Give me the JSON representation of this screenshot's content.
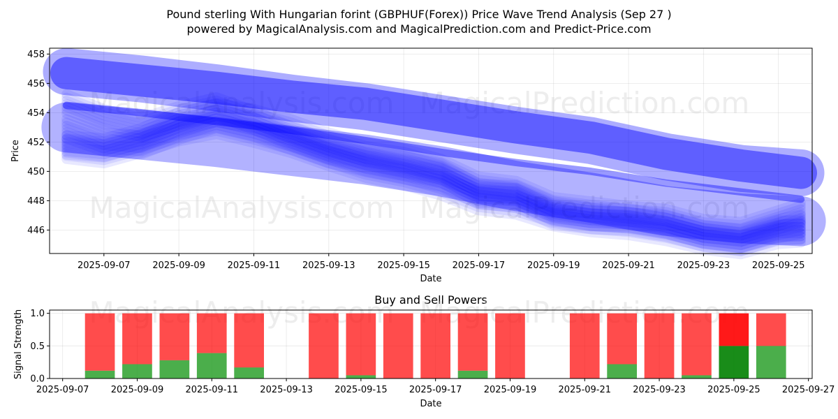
{
  "title_line1": "Pound sterling With Hungarian forint (GBPHUF(Forex)) Price Wave Trend Analysis (Sep 27 )",
  "title_line2": "powered by MagicalAnalysis.com and MagicalPrediction.com and Predict-Price.com",
  "watermarks": [
    "MagicalAnalysis.com",
    "MagicalPrediction.com"
  ],
  "colors": {
    "wave": "#0000ff",
    "sell": "#ff0000",
    "buy": "#2ca02c",
    "buy_strong": "#008000",
    "grid": "#b0b0b0"
  },
  "chart_data": [
    {
      "type": "area",
      "title": "",
      "xlabel": "Date",
      "ylabel": "Price",
      "x_start": "2025-09-06",
      "xlim_days": [
        -0.45,
        19.9
      ],
      "ylim": [
        444.4,
        458.4
      ],
      "x_ticks": [
        "2025-09-07",
        "2025-09-09",
        "2025-09-11",
        "2025-09-13",
        "2025-09-15",
        "2025-09-17",
        "2025-09-19",
        "2025-09-21",
        "2025-09-23",
        "2025-09-25"
      ],
      "y_ticks": [
        446,
        448,
        450,
        452,
        454,
        456,
        458
      ],
      "bands": [
        {
          "name": "upper-wide",
          "width": 3.2,
          "alpha": 0.32,
          "x": [
            0,
            2,
            4,
            6,
            8,
            10,
            12,
            14,
            16,
            18,
            19.6
          ],
          "y": [
            456.8,
            456.3,
            455.7,
            455.0,
            454.4,
            453.6,
            452.8,
            452.1,
            451.0,
            450.2,
            449.9
          ]
        },
        {
          "name": "upper-dense",
          "width": 2.2,
          "alpha": 0.45,
          "x": [
            0,
            2,
            4,
            6,
            8,
            10,
            12,
            14,
            16,
            18,
            19.6
          ],
          "y": [
            456.7,
            456.2,
            455.7,
            455.1,
            454.6,
            453.8,
            453.0,
            452.3,
            451.2,
            450.4,
            449.9
          ]
        },
        {
          "name": "lower-wide",
          "width": 3.4,
          "alpha": 0.3,
          "x": [
            0,
            2,
            4,
            6,
            8,
            10,
            12,
            14,
            16,
            18,
            19.6
          ],
          "y": [
            453.0,
            452.5,
            452.0,
            451.4,
            450.8,
            450.0,
            449.0,
            448.2,
            447.3,
            446.8,
            446.6
          ]
        },
        {
          "name": "mid-line",
          "width": 0.5,
          "alpha": 0.4,
          "x": [
            0,
            2,
            4,
            6,
            8,
            10,
            12,
            14,
            16,
            18,
            19.6
          ],
          "y": [
            454.5,
            454.0,
            453.4,
            452.8,
            452.1,
            451.3,
            450.6,
            450.0,
            449.2,
            448.6,
            448.1
          ]
        }
      ],
      "wave_series": [
        {
          "x": [
            0,
            1,
            2,
            3,
            4,
            5,
            6,
            7,
            8,
            9,
            10,
            11,
            12,
            13,
            14,
            15,
            16,
            17,
            18,
            19,
            19.6
          ],
          "y": [
            451.8,
            451.6,
            452.3,
            453.4,
            454.0,
            453.6,
            452.9,
            452.0,
            451.3,
            450.9,
            450.2,
            449.0,
            448.7,
            447.6,
            447.3,
            447.0,
            446.8,
            446.1,
            445.9,
            446.7,
            447.2
          ]
        },
        {
          "x": [
            0,
            1,
            2,
            3,
            4,
            5,
            6,
            7,
            8,
            9,
            10,
            11,
            12,
            13,
            14,
            15,
            16,
            17,
            18,
            19,
            19.6
          ],
          "y": [
            454.6,
            453.6,
            453.0,
            453.8,
            454.4,
            453.5,
            452.4,
            451.5,
            450.9,
            450.4,
            449.9,
            448.5,
            448.4,
            447.3,
            446.9,
            446.8,
            446.4,
            445.7,
            445.4,
            446.1,
            446.4
          ]
        },
        {
          "x": [
            0,
            1,
            2,
            3,
            4,
            5,
            6,
            7,
            8,
            9,
            10,
            11,
            12,
            13,
            14,
            15,
            16,
            17,
            18,
            19,
            19.6
          ],
          "y": [
            452.9,
            452.0,
            451.8,
            452.8,
            453.6,
            453.0,
            452.1,
            451.2,
            450.6,
            450.1,
            449.6,
            448.4,
            448.2,
            447.0,
            446.7,
            446.6,
            446.2,
            445.5,
            445.2,
            446.0,
            446.0
          ]
        },
        {
          "x": [
            0,
            1,
            2,
            3,
            4,
            5,
            6,
            7,
            8,
            9,
            10,
            11,
            12,
            13,
            14,
            15,
            16,
            17,
            18,
            19,
            19.6
          ],
          "y": [
            451.5,
            451.2,
            451.9,
            452.7,
            453.2,
            452.6,
            451.9,
            451.0,
            450.2,
            449.7,
            449.0,
            448.0,
            447.7,
            446.9,
            446.5,
            446.3,
            445.9,
            445.3,
            445.0,
            445.7,
            445.8
          ]
        }
      ]
    },
    {
      "type": "bar",
      "title": "Buy and Sell Powers",
      "xlabel": "Date",
      "ylabel": "Signal Strength",
      "x_start": "2025-09-06",
      "xlim_days": [
        0.65,
        21.1
      ],
      "ylim": [
        0,
        1.05
      ],
      "x_ticks": [
        "2025-09-07",
        "2025-09-09",
        "2025-09-11",
        "2025-09-13",
        "2025-09-15",
        "2025-09-17",
        "2025-09-19",
        "2025-09-21",
        "2025-09-23",
        "2025-09-25",
        "2025-09-27"
      ],
      "y_ticks": [
        "0.0",
        "0.5",
        "1.0"
      ],
      "bar_width_days": 0.8,
      "bars": [
        {
          "date": "2025-09-08",
          "day": 2,
          "buy": 0.12,
          "sell": 0.88
        },
        {
          "date": "2025-09-09",
          "day": 3,
          "buy": 0.22,
          "sell": 0.78
        },
        {
          "date": "2025-09-10",
          "day": 4,
          "buy": 0.28,
          "sell": 0.72
        },
        {
          "date": "2025-09-11",
          "day": 5,
          "buy": 0.39,
          "sell": 0.61
        },
        {
          "date": "2025-09-12",
          "day": 6,
          "buy": 0.17,
          "sell": 0.83
        },
        {
          "date": "2025-09-14",
          "day": 8,
          "buy": 0.0,
          "sell": 1.0
        },
        {
          "date": "2025-09-15",
          "day": 9,
          "buy": 0.05,
          "sell": 0.95
        },
        {
          "date": "2025-09-16",
          "day": 10,
          "buy": 0.0,
          "sell": 1.0
        },
        {
          "date": "2025-09-17",
          "day": 11,
          "buy": 0.0,
          "sell": 1.0
        },
        {
          "date": "2025-09-18",
          "day": 12,
          "buy": 0.12,
          "sell": 0.88
        },
        {
          "date": "2025-09-19",
          "day": 13,
          "buy": 0.0,
          "sell": 1.0
        },
        {
          "date": "2025-09-21",
          "day": 15,
          "buy": 0.0,
          "sell": 1.0
        },
        {
          "date": "2025-09-22",
          "day": 16,
          "buy": 0.22,
          "sell": 0.78
        },
        {
          "date": "2025-09-23",
          "day": 17,
          "buy": 0.0,
          "sell": 1.0
        },
        {
          "date": "2025-09-24",
          "day": 18,
          "buy": 0.05,
          "sell": 0.95
        },
        {
          "date": "2025-09-25",
          "day": 19,
          "buy": 0.5,
          "sell": 0.5,
          "strong": true
        },
        {
          "date": "2025-09-26",
          "day": 20,
          "buy": 0.5,
          "sell": 0.5
        }
      ]
    }
  ]
}
